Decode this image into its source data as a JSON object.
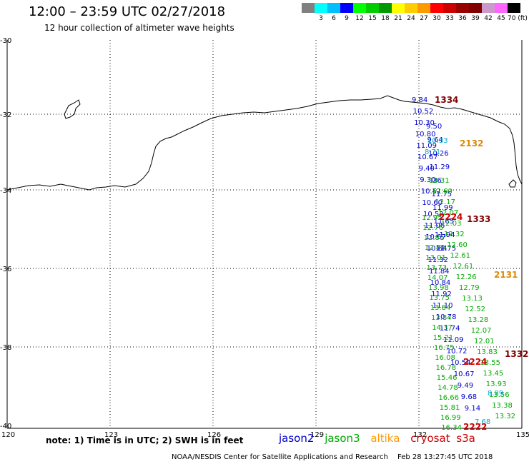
{
  "header": {
    "title": "12:00 – 23:59 UTC 02/27/2018",
    "subtitle": "12 hour collection of altimeter wave heights"
  },
  "colorbar": {
    "colors": [
      "#808080",
      "#00ffff",
      "#00bfff",
      "#0000ff",
      "#00ff00",
      "#00cc00",
      "#009900",
      "#ffff00",
      "#ffcc00",
      "#ff9900",
      "#ff0000",
      "#cc0000",
      "#990000",
      "#800000",
      "#cc99cc",
      "#ff66ff",
      "#000000"
    ],
    "labels": [
      "",
      "3",
      "6",
      "9",
      "12",
      "15",
      "18",
      "21",
      "24",
      "27",
      "30",
      "33",
      "36",
      "39",
      "42",
      "45",
      "70 (ft)"
    ]
  },
  "axes": {
    "lat_labels": [
      "-30",
      "-32",
      "-34",
      "-36",
      "-38",
      "-40"
    ],
    "lon_labels": [
      "120",
      "123",
      "126",
      "129",
      "132",
      "135"
    ]
  },
  "satellite_colors": {
    "jason2": "#0000cc",
    "jason3": "#00aa00",
    "altika": "#ff9900",
    "cryosat": "#cc0000",
    "s3a": "#cc0000",
    "altika_label": "#dd8800",
    "station_dark": "#800000",
    "cyan": "#00aacc"
  },
  "stations": [
    {
      "id": "1334",
      "color": "#800000"
    },
    {
      "id": "2132",
      "color": "#dd8800"
    },
    {
      "id": "2224",
      "color": "#cc0000"
    },
    {
      "id": "1333",
      "color": "#800000"
    },
    {
      "id": "2131",
      "color": "#dd8800"
    },
    {
      "id": "2224",
      "color": "#cc0000"
    },
    {
      "id": "1332",
      "color": "#800000"
    },
    {
      "id": "2222",
      "color": "#cc0000"
    }
  ],
  "track_values": {
    "jason2_col": [
      "9.84",
      "10.52",
      "10.30",
      "10.80",
      "11.09",
      "10.67",
      "9.40",
      "9.30",
      "10.51",
      "10.60",
      "10.52",
      "11.06",
      "10.67",
      "10.64",
      "11.32",
      "11.84",
      "10.84",
      "11.92",
      "11.10",
      "10.78",
      "11.74",
      "11.09",
      "10.72",
      "10.54",
      "10.67",
      "9.49",
      "9.68",
      "9.14"
    ],
    "jason2_right": [
      "9.50",
      "9.64",
      "10.26",
      "11.29",
      ".36",
      "11.75",
      "11.99",
      "11.65",
      "11.94",
      "11.75"
    ],
    "jason3_col": [
      "12.95",
      "12.76",
      "12.81",
      "12.88",
      "13.01",
      "13.73",
      "14.07",
      "13.98",
      "13.75",
      "13.84",
      "13.84",
      "14.37",
      "15.21",
      "16.75",
      "16.08",
      "16.78",
      "15.46",
      "14.78",
      "16.66",
      "15.81",
      "16.99",
      "16.34"
    ],
    "jason3_right": [
      "13.31",
      "12.60",
      "12.17",
      "12.07",
      "12.03",
      "12.32",
      "12.60",
      "12.61",
      "12.61",
      "12.26",
      "12.79",
      "13.13",
      "12.52",
      "13.28",
      "12.07",
      "12.01",
      "13.83",
      "13.55",
      "13.45",
      "13.93",
      "13.56",
      "13.38",
      "13.32"
    ],
    "cyan_vals": [
      "8.71",
      "8.89",
      "7.68",
      "10.33"
    ]
  },
  "footer": {
    "note": "note: 1) Time is in UTC; 2) SWH is in feet",
    "legend": {
      "jason2": "jason2",
      "jason3": "jason3",
      "altika": "altika",
      "cryosat": "cryosat",
      "s3a": "s3a"
    },
    "credit": "NOAA/NESDIS Center for Satellite Applications and Research",
    "timestamp": "Feb 28 13:27:45 UTC 2018"
  }
}
